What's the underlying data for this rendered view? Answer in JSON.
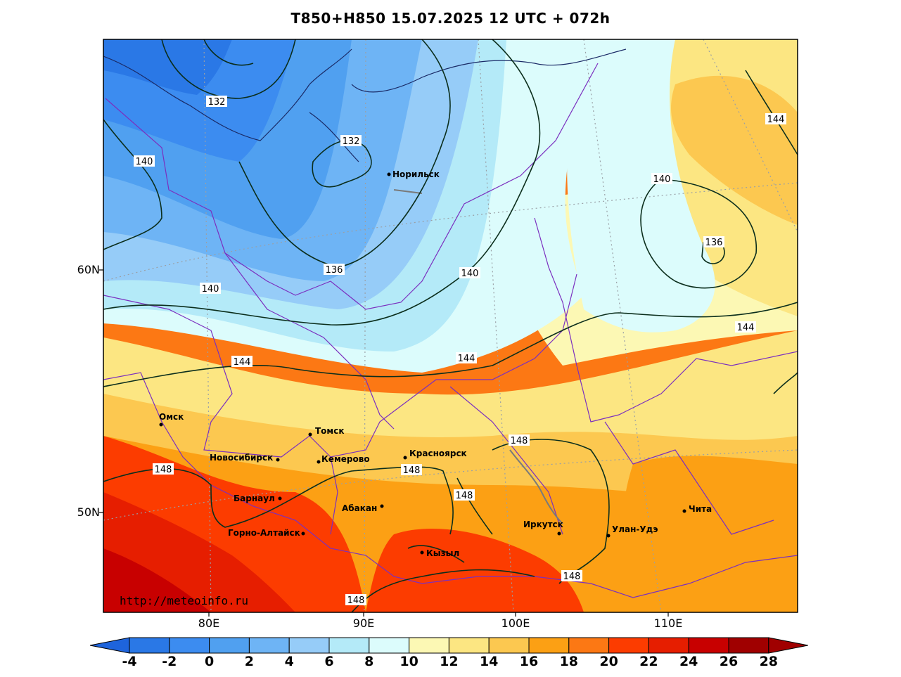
{
  "title": "T850+H850 15.07.2025 12 UTC + 072h",
  "site_url": "http://meteoinfo.ru",
  "lat_labels": [
    "60N",
    "50N"
  ],
  "lon_labels": [
    "80E",
    "90E",
    "100E",
    "110E"
  ],
  "colorbar": {
    "values": [
      "-4",
      "-2",
      "0",
      "2",
      "4",
      "6",
      "8",
      "10",
      "12",
      "14",
      "16",
      "18",
      "20",
      "22",
      "24",
      "26",
      "28"
    ],
    "colors": [
      "#1e64dc",
      "#2a78e6",
      "#3c8cf0",
      "#50a0f0",
      "#6eb4f5",
      "#96ccf8",
      "#b4eaf8",
      "#dcfcfc",
      "#fcf8b4",
      "#fce682",
      "#fcc850",
      "#fca014",
      "#fc7814",
      "#fc3c00",
      "#e61e00",
      "#c80000",
      "#a00000"
    ]
  },
  "cities": [
    {
      "name": "Норильск"
    },
    {
      "name": "Омск"
    },
    {
      "name": "Томск"
    },
    {
      "name": "Новосибирск"
    },
    {
      "name": "Кемерово"
    },
    {
      "name": "Красноярск"
    },
    {
      "name": "Барнаул"
    },
    {
      "name": "Абакан"
    },
    {
      "name": "Горно-Алтайск"
    },
    {
      "name": "Кызыл"
    },
    {
      "name": "Иркутск"
    },
    {
      "name": "Улан-Удэ"
    },
    {
      "name": "Чита"
    }
  ],
  "contour_labels": [
    "132",
    "132",
    "140",
    "140",
    "136",
    "140",
    "140",
    "136",
    "144",
    "144",
    "144",
    "148",
    "148",
    "148",
    "148",
    "148",
    "148"
  ]
}
